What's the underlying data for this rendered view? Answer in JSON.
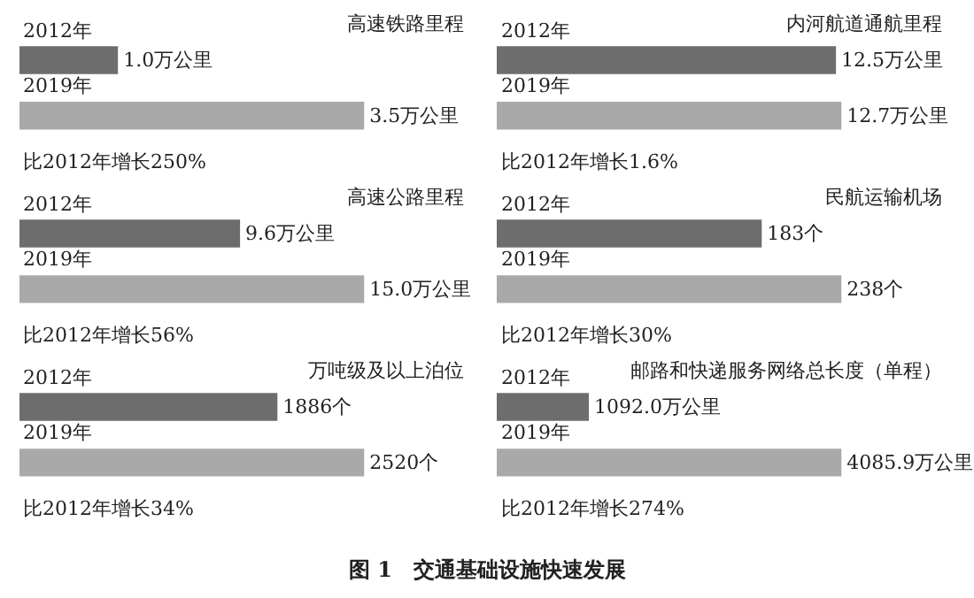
{
  "chart_data": [
    {
      "type": "bar",
      "orientation": "horizontal",
      "title": "高速铁路里程",
      "categories": [
        "2012年",
        "2019年"
      ],
      "values": [
        1.0,
        3.5
      ],
      "value_labels": [
        "1.0万公里",
        "3.5万公里"
      ],
      "colors": [
        "#6d6d6d",
        "#a9a9a9"
      ],
      "tick_labels": "y",
      "annotations": [
        "比2012年增长250%"
      ]
    },
    {
      "type": "bar",
      "orientation": "horizontal",
      "title": "内河航道通航里程",
      "categories": [
        "2012年",
        "2019年"
      ],
      "values": [
        12.5,
        12.7
      ],
      "value_labels": [
        "12.5万公里",
        "12.7万公里"
      ],
      "colors": [
        "#6d6d6d",
        "#a9a9a9"
      ],
      "tick_labels": "y",
      "annotations": [
        "比2012年增长1.6%"
      ]
    },
    {
      "type": "bar",
      "orientation": "horizontal",
      "title": "高速公路里程",
      "categories": [
        "2012年",
        "2019年"
      ],
      "values": [
        9.6,
        15.0
      ],
      "value_labels": [
        "9.6万公里",
        "15.0万公里"
      ],
      "colors": [
        "#6d6d6d",
        "#a9a9a9"
      ],
      "tick_labels": "y",
      "annotations": [
        "比2012年增长56%"
      ]
    },
    {
      "type": "bar",
      "orientation": "horizontal",
      "title": "民航运输机场",
      "categories": [
        "2012年",
        "2019年"
      ],
      "values": [
        183,
        238
      ],
      "value_labels": [
        "183个",
        "238个"
      ],
      "colors": [
        "#6d6d6d",
        "#a9a9a9"
      ],
      "tick_labels": "y",
      "annotations": [
        "比2012年增长30%"
      ]
    },
    {
      "type": "bar",
      "orientation": "horizontal",
      "title": "万吨级及以上泊位",
      "categories": [
        "2012年",
        "2019年"
      ],
      "values": [
        1886,
        2520
      ],
      "value_labels": [
        "1886个",
        "2520个"
      ],
      "colors": [
        "#6d6d6d",
        "#a9a9a9"
      ],
      "tick_labels": "y",
      "annotations": [
        "比2012年增长34%"
      ]
    },
    {
      "type": "bar",
      "orientation": "horizontal",
      "title": "邮路和快递服务网络总长度（单程）",
      "categories": [
        "2012年",
        "2019年"
      ],
      "values": [
        1092.0,
        4085.9
      ],
      "value_labels": [
        "1092.0万公里",
        "4085.9万公里"
      ],
      "colors": [
        "#6d6d6d",
        "#a9a9a9"
      ],
      "tick_labels": "y",
      "annotations": [
        "比2012年增长274%",
        "图 1　交通基础设施快速发展"
      ]
    }
  ]
}
